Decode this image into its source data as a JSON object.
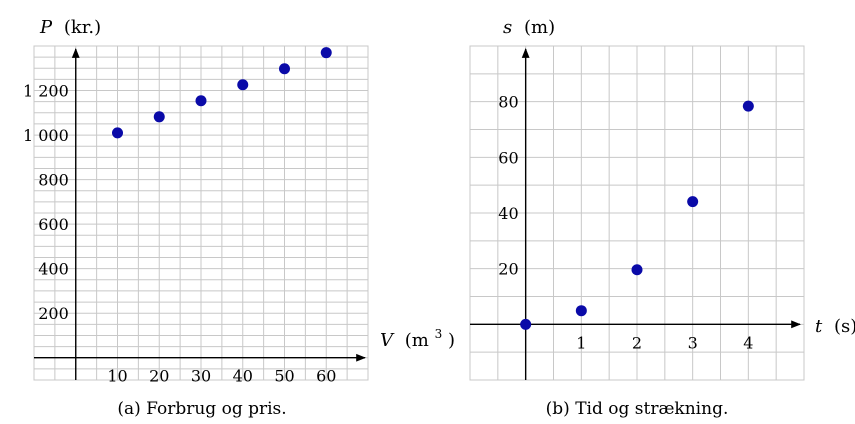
{
  "chart_data": [
    {
      "type": "scatter",
      "caption": "(a)  Forbrug og pris.",
      "xlabel": "V (m³)",
      "xlabel_var": "V",
      "xlabel_unit_main": "(m",
      "xlabel_unit_sup": "3",
      "xlabel_unit_end": ")",
      "ylabel": "P (kr.)",
      "ylabel_var": "P",
      "ylabel_unit": "(kr.)",
      "xlim": [
        -10,
        70
      ],
      "ylim": [
        -100,
        1400
      ],
      "grid": true,
      "x_ticks": [
        10,
        20,
        30,
        40,
        50,
        60
      ],
      "x_tick_labels": [
        "10",
        "20",
        "30",
        "40",
        "50",
        "60"
      ],
      "y_ticks": [
        200,
        400,
        600,
        800,
        1000,
        1200
      ],
      "y_tick_labels": [
        "200",
        "400",
        "600",
        "800",
        "1 000",
        "1 200"
      ],
      "series": [
        {
          "x": [
            10,
            20,
            30,
            40,
            50,
            60
          ],
          "y": [
            1010,
            1082,
            1154,
            1226,
            1298,
            1370
          ]
        }
      ],
      "point_color": "#0a0aa8"
    },
    {
      "type": "scatter",
      "caption": "(b)  Tid og strækning.",
      "xlabel": "t (s)",
      "xlabel_var": "t",
      "xlabel_unit_main": "(s)",
      "xlabel_unit_sup": "",
      "xlabel_unit_end": "",
      "ylabel": "s (m)",
      "ylabel_var": "s",
      "ylabel_unit": "(m)",
      "xlim": [
        -1,
        5
      ],
      "ylim": [
        -20,
        100
      ],
      "grid": true,
      "x_ticks": [
        1,
        2,
        3,
        4
      ],
      "x_tick_labels": [
        "1",
        "2",
        "3",
        "4"
      ],
      "y_ticks": [
        20,
        40,
        60,
        80
      ],
      "y_tick_labels": [
        "20",
        "40",
        "60",
        "80"
      ],
      "series": [
        {
          "x": [
            0,
            1,
            2,
            3,
            4
          ],
          "y": [
            0,
            4.9,
            19.6,
            44.1,
            78.4
          ]
        }
      ],
      "point_color": "#0a0aa8"
    }
  ]
}
